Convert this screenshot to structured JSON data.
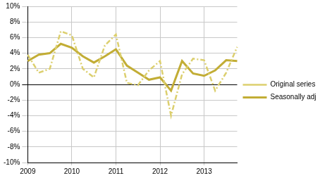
{
  "chart_data": {
    "type": "line",
    "categories": [
      "2009",
      null,
      null,
      null,
      "2010",
      null,
      null,
      null,
      "2011",
      null,
      null,
      null,
      "2012",
      null,
      null,
      null,
      "2013",
      null,
      null,
      null
    ],
    "series": [
      {
        "name": "Original series",
        "color": "#dccf6e",
        "line_style": "dashdot",
        "marker": "none",
        "values": [
          3.8,
          1.5,
          2.0,
          6.8,
          6.3,
          2.0,
          0.9,
          5.0,
          6.4,
          0.2,
          -0.1,
          1.8,
          3.0,
          -4.0,
          1.3,
          3.3,
          3.1,
          -0.8,
          1.5,
          4.8
        ]
      },
      {
        "name": "Seasonally adj.",
        "color": "#c2ad35",
        "line_style": "solid",
        "marker": "none",
        "values": [
          3.0,
          3.8,
          4.0,
          5.2,
          4.7,
          3.6,
          2.8,
          3.6,
          4.5,
          2.4,
          1.5,
          0.6,
          0.9,
          -0.8,
          3.0,
          1.4,
          1.1,
          1.8,
          3.1,
          3.0
        ]
      }
    ],
    "ylim": [
      -10,
      10
    ],
    "yticks": [
      {
        "value": -10,
        "label": "-10%"
      },
      {
        "value": -8,
        "label": "-8%"
      },
      {
        "value": -6,
        "label": "-6%"
      },
      {
        "value": -4,
        "label": "-4%"
      },
      {
        "value": -2,
        "label": "-2%"
      },
      {
        "value": 0,
        "label": "0%"
      },
      {
        "value": 2,
        "label": "2%"
      },
      {
        "value": 4,
        "label": "4%"
      },
      {
        "value": 6,
        "label": "6%"
      },
      {
        "value": 8,
        "label": "8%"
      },
      {
        "value": 10,
        "label": "10%"
      }
    ],
    "grid": true,
    "legend": "right"
  }
}
